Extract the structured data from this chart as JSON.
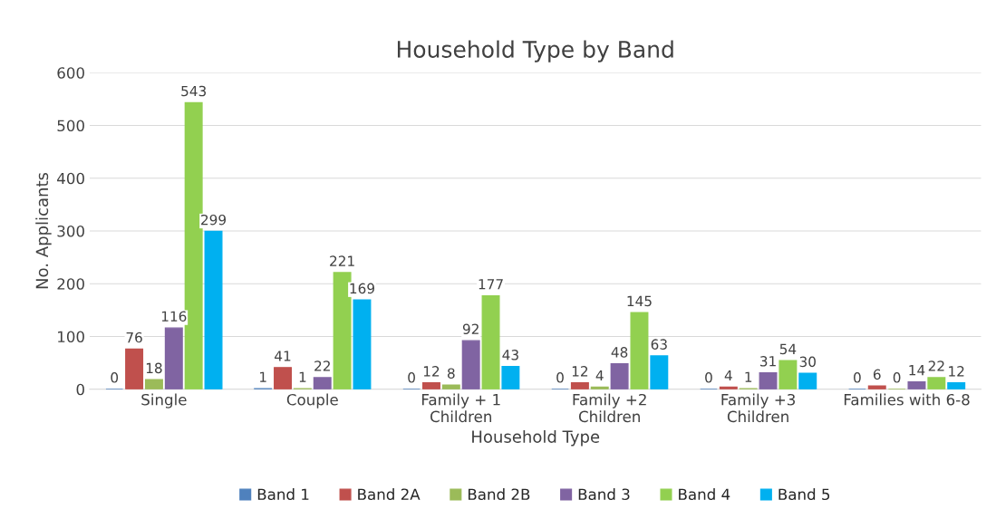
{
  "chart_data": {
    "type": "bar",
    "title": "Household Type by Band",
    "xlabel": "Household Type",
    "ylabel": "No. Applicants",
    "categories": [
      "Single",
      "Couple",
      "Family + 1\nChildren",
      "Family +2\nChildren",
      "Family +3\nChildren",
      "Families with 6-8"
    ],
    "series": [
      {
        "name": "Band 1",
        "color": "#4f81bd",
        "values": [
          0,
          1,
          0,
          0,
          0,
          0
        ]
      },
      {
        "name": "Band 2A",
        "color": "#c0504d",
        "values": [
          76,
          41,
          12,
          12,
          4,
          6
        ]
      },
      {
        "name": "Band 2B",
        "color": "#9bbb59",
        "values": [
          18,
          1,
          8,
          4,
          1,
          0
        ]
      },
      {
        "name": "Band 3",
        "color": "#8064a2",
        "values": [
          116,
          22,
          92,
          48,
          31,
          14
        ]
      },
      {
        "name": "Band 4",
        "color": "#92d050",
        "values": [
          543,
          221,
          177,
          145,
          54,
          22
        ]
      },
      {
        "name": "Band 5",
        "color": "#00b0f0",
        "values": [
          299,
          169,
          43,
          63,
          30,
          12
        ]
      }
    ],
    "ylim": [
      0,
      600
    ],
    "yticks": [
      0,
      100,
      200,
      300,
      400,
      500,
      600
    ],
    "grid": "y",
    "legend": "bottom",
    "data_labels": true
  }
}
